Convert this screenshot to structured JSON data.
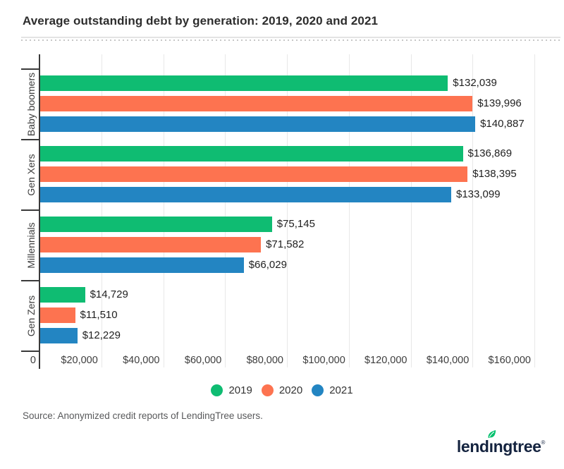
{
  "title": "Average outstanding debt by generation: 2019, 2020 and 2021",
  "source": "Source: Anonymized credit reports of LendingTree users.",
  "logo": {
    "part1": "lend",
    "dotless_i": "ı",
    "part2": "ngtree",
    "reg": "®",
    "full_text": "lendingtree",
    "text_color": "#14233f",
    "leaf_color": "#00c06d"
  },
  "chart_data": {
    "type": "bar",
    "orientation": "horizontal",
    "title": "Average outstanding debt by generation: 2019, 2020 and 2021",
    "categories": [
      "Baby boomers",
      "Gen Xers",
      "Millennials",
      "Gen Zers"
    ],
    "series": [
      {
        "name": "2019",
        "color": "#0fbc72",
        "values": [
          132039,
          136869,
          75145,
          14729
        ],
        "labels": [
          "$132,039",
          "$136,869",
          "$75,145",
          "$14,729"
        ]
      },
      {
        "name": "2020",
        "color": "#fd7350",
        "values": [
          139996,
          138395,
          71582,
          11510
        ],
        "labels": [
          "$139,996",
          "$138,395",
          "$71,582",
          "$11,510"
        ]
      },
      {
        "name": "2021",
        "color": "#2385c2",
        "values": [
          140887,
          133099,
          66029,
          12229
        ],
        "labels": [
          "$140,887",
          "$133,099",
          "$66,029",
          "$12,229"
        ]
      }
    ],
    "xlim": [
      0,
      160000
    ],
    "x_ticks": [
      "0",
      "$20,000",
      "$40,000",
      "$60,000",
      "$80,000",
      "$100,000",
      "$120,000",
      "$140,000",
      "$160,000"
    ],
    "x_tick_values": [
      0,
      20000,
      40000,
      60000,
      80000,
      100000,
      120000,
      140000,
      160000
    ],
    "grid": true,
    "legend_position": "bottom"
  }
}
